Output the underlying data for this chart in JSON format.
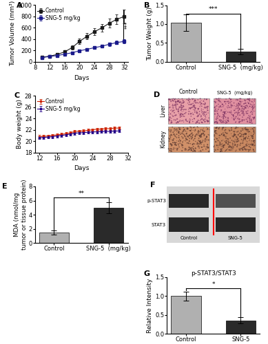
{
  "panel_A": {
    "days": [
      10,
      12,
      14,
      16,
      18,
      20,
      22,
      24,
      26,
      28,
      30,
      32
    ],
    "control_mean": [
      80,
      100,
      130,
      175,
      250,
      360,
      450,
      530,
      600,
      680,
      750,
      800
    ],
    "control_err": [
      10,
      15,
      20,
      25,
      35,
      45,
      55,
      60,
      70,
      80,
      90,
      120
    ],
    "sng_mean": [
      75,
      95,
      110,
      135,
      160,
      195,
      220,
      250,
      275,
      310,
      340,
      360
    ],
    "sng_err": [
      8,
      10,
      12,
      15,
      18,
      20,
      22,
      25,
      28,
      30,
      32,
      35
    ],
    "ylabel": "Tumor Volume (mm³)",
    "xlabel": "Days",
    "xlim": [
      8,
      33
    ],
    "ylim": [
      0,
      1000
    ],
    "yticks": [
      0,
      200,
      400,
      600,
      800,
      1000
    ],
    "xticks": [
      8,
      12,
      16,
      20,
      24,
      28,
      32
    ],
    "control_color": "#1a1a1a",
    "sng_color": "#1a1a8a",
    "significance": "***"
  },
  "panel_B": {
    "categories": [
      "Control",
      "SNG-5  (mg/kg)"
    ],
    "values": [
      1.03,
      0.27
    ],
    "errors": [
      0.22,
      0.07
    ],
    "bar_colors": [
      "#B0B0B0",
      "#2a2a2a"
    ],
    "ylabel": "Tumor Weight (g)",
    "ylim": [
      0,
      1.5
    ],
    "yticks": [
      0.0,
      0.5,
      1.0,
      1.5
    ],
    "significance": "***"
  },
  "panel_C": {
    "days": [
      12,
      13,
      14,
      15,
      16,
      17,
      18,
      19,
      20,
      21,
      22,
      23,
      24,
      25,
      26,
      27,
      28,
      29,
      30
    ],
    "control_mean": [
      20.8,
      20.85,
      20.9,
      21.0,
      21.1,
      21.2,
      21.3,
      21.45,
      21.7,
      21.75,
      21.8,
      21.9,
      22.0,
      22.1,
      22.1,
      22.2,
      22.2,
      22.3,
      22.3
    ],
    "control_err": [
      0.25,
      0.25,
      0.25,
      0.25,
      0.25,
      0.25,
      0.25,
      0.25,
      0.25,
      0.25,
      0.25,
      0.25,
      0.25,
      0.25,
      0.25,
      0.25,
      0.25,
      0.25,
      0.25
    ],
    "sng_mean": [
      20.6,
      20.65,
      20.7,
      20.8,
      20.9,
      21.0,
      21.1,
      21.25,
      21.4,
      21.45,
      21.5,
      21.55,
      21.6,
      21.65,
      21.7,
      21.7,
      21.7,
      21.75,
      21.8
    ],
    "sng_err": [
      0.25,
      0.25,
      0.25,
      0.25,
      0.25,
      0.25,
      0.25,
      0.25,
      0.25,
      0.25,
      0.25,
      0.25,
      0.25,
      0.25,
      0.25,
      0.25,
      0.25,
      0.25,
      0.25
    ],
    "ylabel": "Body weight (g)",
    "xlabel": "Days",
    "xlim": [
      11,
      32
    ],
    "ylim": [
      18,
      28
    ],
    "yticks": [
      18,
      20,
      22,
      24,
      26,
      28
    ],
    "xticks": [
      12,
      16,
      20,
      24,
      28,
      32
    ],
    "control_color": "#CC2200",
    "sng_color": "#220088"
  },
  "panel_D": {
    "label_control": "Control",
    "label_sng": "SNG-5  (mg/kg)",
    "label_liver": "Liver",
    "label_kidney": "Kidney",
    "liver_ctrl_color": "#D4758A",
    "liver_sng_color": "#C86878",
    "kidney_ctrl_color": "#B06858",
    "kidney_sng_color": "#A86050"
  },
  "panel_E": {
    "categories": [
      "Control",
      "SNG-5  (mg/kg)"
    ],
    "values": [
      1.5,
      5.0
    ],
    "errors": [
      0.3,
      0.8
    ],
    "bar_colors": [
      "#B0B0B0",
      "#2a2a2a"
    ],
    "ylabel": "MDA (nmol/mg\ntumor or tissue protein)",
    "ylim": [
      0,
      8
    ],
    "yticks": [
      0,
      2,
      4,
      6,
      8
    ],
    "significance": "**"
  },
  "panel_F": {
    "rows": [
      "p-STAT3",
      "STAT3"
    ],
    "col_labels": [
      "Control",
      "SNG-5"
    ],
    "band_ctrl_pstat3": "#282828",
    "band_sng_pstat3": "#505050",
    "band_ctrl_stat3": "#282828",
    "band_sng_stat3": "#282828"
  },
  "panel_G": {
    "categories": [
      "Control",
      "SNG-5"
    ],
    "values": [
      1.0,
      0.35
    ],
    "errors": [
      0.12,
      0.08
    ],
    "bar_colors": [
      "#B0B0B0",
      "#2a2a2a"
    ],
    "ylabel": "Relative Intensity",
    "title_label": "p-STAT3/STAT3",
    "ylim": [
      0,
      1.5
    ],
    "yticks": [
      0.0,
      0.5,
      1.0,
      1.5
    ],
    "significance": "*"
  },
  "label_fontsize": 8,
  "axis_fontsize": 6.5,
  "tick_fontsize": 6,
  "legend_fontsize": 5.5
}
